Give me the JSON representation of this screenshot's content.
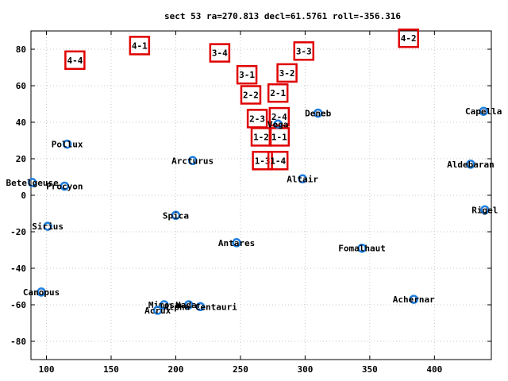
{
  "chart_data": {
    "type": "scatter",
    "title": "sect 53 ra=270.813 decl=61.5761 roll=-356.316",
    "xlabel": "",
    "ylabel": "",
    "xlim": [
      88,
      444
    ],
    "ylim": [
      -90,
      90
    ],
    "xticks": [
      100,
      150,
      200,
      250,
      300,
      350,
      400
    ],
    "yticks": [
      -80,
      -60,
      -40,
      -20,
      0,
      20,
      40,
      60,
      80
    ],
    "grid": true,
    "colors": {
      "star": "#1f7fe0",
      "box": "#e00000"
    },
    "stars": [
      {
        "name": "Capella",
        "x": 438,
        "y": 46
      },
      {
        "name": "Deneb",
        "x": 310,
        "y": 45
      },
      {
        "name": "Vega",
        "x": 279,
        "y": 39
      },
      {
        "name": "Pollux",
        "x": 116,
        "y": 28
      },
      {
        "name": "Arcturus",
        "x": 213,
        "y": 19
      },
      {
        "name": "Aldebaran",
        "x": 428,
        "y": 17
      },
      {
        "name": "Altair",
        "x": 298,
        "y": 9
      },
      {
        "name": "Betelgeuse",
        "x": 89,
        "y": 7
      },
      {
        "name": "Procyon",
        "x": 114,
        "y": 5
      },
      {
        "name": "Rigel",
        "x": 439,
        "y": -8
      },
      {
        "name": "Spica",
        "x": 200,
        "y": -11
      },
      {
        "name": "Sirius",
        "x": 101,
        "y": -17
      },
      {
        "name": "Antares",
        "x": 247,
        "y": -26
      },
      {
        "name": "Fomalhaut",
        "x": 344,
        "y": -29
      },
      {
        "name": "Canopus",
        "x": 96,
        "y": -53
      },
      {
        "name": "Achernar",
        "x": 384,
        "y": -57
      },
      {
        "name": "Mimosa",
        "x": 191,
        "y": -60
      },
      {
        "name": "Hadar",
        "x": 210,
        "y": -60
      },
      {
        "name": "Acrux",
        "x": 186,
        "y": -63
      },
      {
        "name": "Alpha Centauri",
        "x": 219,
        "y": -61
      }
    ],
    "boxes": [
      {
        "label": "4-1",
        "x": 172,
        "y": 82
      },
      {
        "label": "4-2",
        "x": 380,
        "y": 86
      },
      {
        "label": "4-4",
        "x": 122,
        "y": 74
      },
      {
        "label": "3-4",
        "x": 234,
        "y": 78
      },
      {
        "label": "3-3",
        "x": 299,
        "y": 79
      },
      {
        "label": "3-1",
        "x": 255,
        "y": 66
      },
      {
        "label": "3-2",
        "x": 286,
        "y": 67
      },
      {
        "label": "2-2",
        "x": 258,
        "y": 55
      },
      {
        "label": "2-1",
        "x": 279,
        "y": 56
      },
      {
        "label": "2-3",
        "x": 263,
        "y": 42
      },
      {
        "label": "2-4",
        "x": 280,
        "y": 43
      },
      {
        "label": "1-2",
        "x": 266,
        "y": 32
      },
      {
        "label": "1-1",
        "x": 280,
        "y": 32
      },
      {
        "label": "1-3",
        "x": 267,
        "y": 19
      },
      {
        "label": "1-4",
        "x": 279,
        "y": 19
      }
    ]
  }
}
